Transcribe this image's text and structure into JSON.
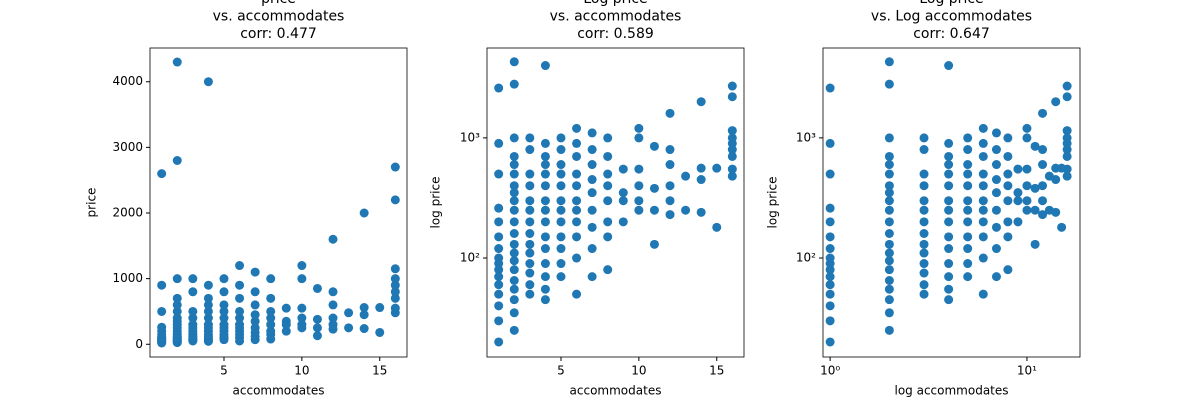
{
  "chart_data": [
    {
      "type": "scatter",
      "title": [
        "price",
        "vs. accommodates",
        "corr: 0.477"
      ],
      "xlabel": "accommodates",
      "ylabel": "price",
      "color": "#1f77b4",
      "xscale": "linear",
      "yscale": "linear",
      "xlim": [
        0.25,
        16.75
      ],
      "ylim": [
        -194,
        4514
      ],
      "xticks": [
        5,
        10,
        15
      ],
      "yticks": [
        0,
        1000,
        2000,
        3000,
        4000
      ],
      "x": [
        1,
        1,
        1,
        1,
        1,
        1,
        1,
        1,
        1,
        1,
        1,
        1,
        1,
        1,
        1,
        1,
        2,
        2,
        2,
        2,
        2,
        2,
        2,
        2,
        2,
        2,
        2,
        2,
        2,
        2,
        2,
        2,
        2,
        2,
        2,
        2,
        2,
        3,
        3,
        3,
        3,
        3,
        3,
        3,
        3,
        3,
        3,
        3,
        3,
        3,
        3,
        4,
        4,
        4,
        4,
        4,
        4,
        4,
        4,
        4,
        4,
        4,
        4,
        4,
        4,
        4,
        5,
        5,
        5,
        5,
        5,
        5,
        5,
        5,
        5,
        5,
        5,
        5,
        6,
        6,
        6,
        6,
        6,
        6,
        6,
        6,
        6,
        6,
        6,
        7,
        7,
        7,
        7,
        7,
        7,
        7,
        7,
        7,
        8,
        8,
        8,
        8,
        8,
        8,
        8,
        8,
        9,
        9,
        9,
        9,
        10,
        10,
        10,
        10,
        10,
        10,
        11,
        11,
        11,
        11,
        12,
        12,
        12,
        12,
        12,
        12,
        13,
        13,
        14,
        14,
        14,
        14,
        15,
        15,
        16,
        16,
        16,
        16,
        16,
        16,
        16,
        16,
        16
      ],
      "y": [
        20,
        30,
        40,
        50,
        60,
        70,
        80,
        90,
        100,
        120,
        150,
        200,
        260,
        500,
        900,
        2600,
        25,
        35,
        45,
        55,
        65,
        80,
        95,
        110,
        130,
        160,
        200,
        250,
        300,
        350,
        400,
        500,
        600,
        700,
        1000,
        2800,
        4300,
        50,
        60,
        75,
        90,
        110,
        130,
        160,
        200,
        250,
        300,
        400,
        500,
        800,
        1000,
        45,
        55,
        70,
        90,
        120,
        150,
        200,
        250,
        300,
        400,
        500,
        600,
        700,
        900,
        4000,
        70,
        90,
        120,
        150,
        200,
        250,
        300,
        400,
        500,
        600,
        800,
        1000,
        50,
        100,
        150,
        200,
        250,
        300,
        400,
        500,
        700,
        900,
        1200,
        70,
        120,
        180,
        250,
        350,
        450,
        600,
        800,
        1100,
        80,
        150,
        200,
        300,
        400,
        500,
        700,
        1000,
        200,
        300,
        350,
        550,
        250,
        300,
        400,
        550,
        1000,
        1200,
        130,
        250,
        380,
        850,
        230,
        300,
        400,
        600,
        800,
        1600,
        250,
        480,
        240,
        450,
        560,
        2000,
        180,
        560,
        480,
        550,
        700,
        800,
        900,
        1000,
        1150,
        2200,
        2700
      ]
    },
    {
      "type": "scatter",
      "title": [
        "Log price",
        "vs. accommodates",
        "corr: 0.589"
      ],
      "xlabel": "accommodates",
      "ylabel": "log price",
      "color": "#1f77b4",
      "xscale": "linear",
      "yscale": "log",
      "xlim": [
        0.25,
        16.75
      ],
      "ylim": [
        15,
        5600
      ],
      "xticks": [
        5,
        10,
        15
      ],
      "yticks": [
        {
          "value": 100,
          "label": "10²"
        },
        {
          "value": 1000,
          "label": "10³"
        }
      ],
      "x": [
        1,
        1,
        1,
        1,
        1,
        1,
        1,
        1,
        1,
        1,
        1,
        1,
        1,
        1,
        1,
        1,
        2,
        2,
        2,
        2,
        2,
        2,
        2,
        2,
        2,
        2,
        2,
        2,
        2,
        2,
        2,
        2,
        2,
        2,
        2,
        2,
        2,
        3,
        3,
        3,
        3,
        3,
        3,
        3,
        3,
        3,
        3,
        3,
        3,
        3,
        3,
        4,
        4,
        4,
        4,
        4,
        4,
        4,
        4,
        4,
        4,
        4,
        4,
        4,
        4,
        4,
        5,
        5,
        5,
        5,
        5,
        5,
        5,
        5,
        5,
        5,
        5,
        5,
        6,
        6,
        6,
        6,
        6,
        6,
        6,
        6,
        6,
        6,
        6,
        7,
        7,
        7,
        7,
        7,
        7,
        7,
        7,
        7,
        8,
        8,
        8,
        8,
        8,
        8,
        8,
        8,
        9,
        9,
        9,
        9,
        10,
        10,
        10,
        10,
        10,
        10,
        11,
        11,
        11,
        11,
        12,
        12,
        12,
        12,
        12,
        12,
        13,
        13,
        14,
        14,
        14,
        14,
        15,
        15,
        16,
        16,
        16,
        16,
        16,
        16,
        16,
        16,
        16
      ],
      "y": [
        20,
        30,
        40,
        50,
        60,
        70,
        80,
        90,
        100,
        120,
        150,
        200,
        260,
        500,
        900,
        2600,
        25,
        35,
        45,
        55,
        65,
        80,
        95,
        110,
        130,
        160,
        200,
        250,
        300,
        350,
        400,
        500,
        600,
        700,
        1000,
        2800,
        4300,
        50,
        60,
        75,
        90,
        110,
        130,
        160,
        200,
        250,
        300,
        400,
        500,
        800,
        1000,
        45,
        55,
        70,
        90,
        120,
        150,
        200,
        250,
        300,
        400,
        500,
        600,
        700,
        900,
        4000,
        70,
        90,
        120,
        150,
        200,
        250,
        300,
        400,
        500,
        600,
        800,
        1000,
        50,
        100,
        150,
        200,
        250,
        300,
        400,
        500,
        700,
        900,
        1200,
        70,
        120,
        180,
        250,
        350,
        450,
        600,
        800,
        1100,
        80,
        150,
        200,
        300,
        400,
        500,
        700,
        1000,
        200,
        300,
        350,
        550,
        250,
        300,
        400,
        550,
        1000,
        1200,
        130,
        250,
        380,
        850,
        230,
        300,
        400,
        600,
        800,
        1600,
        250,
        480,
        240,
        450,
        560,
        2000,
        180,
        560,
        480,
        550,
        700,
        800,
        900,
        1000,
        1150,
        2200,
        2700
      ]
    },
    {
      "type": "scatter",
      "title": [
        "Log price",
        "vs. Log accommodates",
        "corr: 0.647"
      ],
      "xlabel": "log accommodates",
      "ylabel": "log price",
      "color": "#1f77b4",
      "xscale": "log",
      "yscale": "log",
      "xlim": [
        0.92,
        18.6
      ],
      "ylim": [
        15,
        5600
      ],
      "xticks": [
        {
          "value": 1,
          "label": "10⁰"
        },
        {
          "value": 10,
          "label": "10¹"
        }
      ],
      "yticks": [
        {
          "value": 100,
          "label": "10²"
        },
        {
          "value": 1000,
          "label": "10³"
        }
      ],
      "x": [
        1,
        1,
        1,
        1,
        1,
        1,
        1,
        1,
        1,
        1,
        1,
        1,
        1,
        1,
        1,
        1,
        2,
        2,
        2,
        2,
        2,
        2,
        2,
        2,
        2,
        2,
        2,
        2,
        2,
        2,
        2,
        2,
        2,
        2,
        2,
        2,
        2,
        3,
        3,
        3,
        3,
        3,
        3,
        3,
        3,
        3,
        3,
        3,
        3,
        3,
        3,
        4,
        4,
        4,
        4,
        4,
        4,
        4,
        4,
        4,
        4,
        4,
        4,
        4,
        4,
        4,
        5,
        5,
        5,
        5,
        5,
        5,
        5,
        5,
        5,
        5,
        5,
        5,
        6,
        6,
        6,
        6,
        6,
        6,
        6,
        6,
        6,
        6,
        6,
        7,
        7,
        7,
        7,
        7,
        7,
        7,
        7,
        7,
        8,
        8,
        8,
        8,
        8,
        8,
        8,
        8,
        9,
        9,
        9,
        9,
        10,
        10,
        10,
        10,
        10,
        10,
        11,
        11,
        11,
        11,
        12,
        12,
        12,
        12,
        12,
        12,
        13,
        13,
        14,
        14,
        14,
        14,
        15,
        15,
        16,
        16,
        16,
        16,
        16,
        16,
        16,
        16,
        16
      ],
      "y": [
        20,
        30,
        40,
        50,
        60,
        70,
        80,
        90,
        100,
        120,
        150,
        200,
        260,
        500,
        900,
        2600,
        25,
        35,
        45,
        55,
        65,
        80,
        95,
        110,
        130,
        160,
        200,
        250,
        300,
        350,
        400,
        500,
        600,
        700,
        1000,
        2800,
        4300,
        50,
        60,
        75,
        90,
        110,
        130,
        160,
        200,
        250,
        300,
        400,
        500,
        800,
        1000,
        45,
        55,
        70,
        90,
        120,
        150,
        200,
        250,
        300,
        400,
        500,
        600,
        700,
        900,
        4000,
        70,
        90,
        120,
        150,
        200,
        250,
        300,
        400,
        500,
        600,
        800,
        1000,
        50,
        100,
        150,
        200,
        250,
        300,
        400,
        500,
        700,
        900,
        1200,
        70,
        120,
        180,
        250,
        350,
        450,
        600,
        800,
        1100,
        80,
        150,
        200,
        300,
        400,
        500,
        700,
        1000,
        200,
        300,
        350,
        550,
        250,
        300,
        400,
        550,
        1000,
        1200,
        130,
        250,
        380,
        850,
        230,
        300,
        400,
        600,
        800,
        1600,
        250,
        480,
        240,
        450,
        560,
        2000,
        180,
        560,
        480,
        550,
        700,
        800,
        900,
        1000,
        1150,
        2200,
        2700
      ]
    }
  ]
}
